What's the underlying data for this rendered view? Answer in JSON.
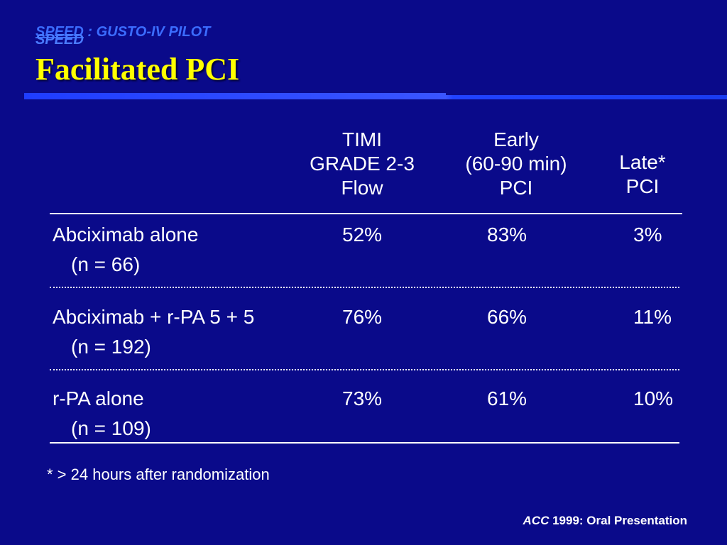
{
  "header": {
    "subtitle_speed": "SPEED",
    "subtitle_rest": " : GUSTO-IV PILOT",
    "subtitle_shadow": "SPEED",
    "title": "Facilitated PCI"
  },
  "table": {
    "columns": [
      {
        "lines": [
          "TIMI",
          "GRADE 2-3",
          "Flow"
        ]
      },
      {
        "lines": [
          "Early",
          "(60-90 min)",
          "PCI"
        ]
      },
      {
        "lines": [
          "Late*",
          "PCI"
        ]
      }
    ],
    "rows": [
      {
        "label": "Abciximab alone",
        "n": "(n = 66)",
        "timi": "52%",
        "early": "83%",
        "late": "3%"
      },
      {
        "label": "Abciximab + r-PA 5 + 5",
        "n": "(n = 192)",
        "timi": "76%",
        "early": "66%",
        "late": "11%"
      },
      {
        "label": "r-PA alone",
        "n": "(n = 109)",
        "timi": "73%",
        "early": "61%",
        "late": "10%"
      }
    ]
  },
  "footnote": "* > 24 hours after randomization",
  "credit": {
    "journal": "ACC",
    "rest": " 1999: Oral Presentation"
  },
  "colors": {
    "background": "#0a0a8a",
    "title": "#ffff00",
    "subtitle": "#3b6cff",
    "text": "#ffffff"
  }
}
